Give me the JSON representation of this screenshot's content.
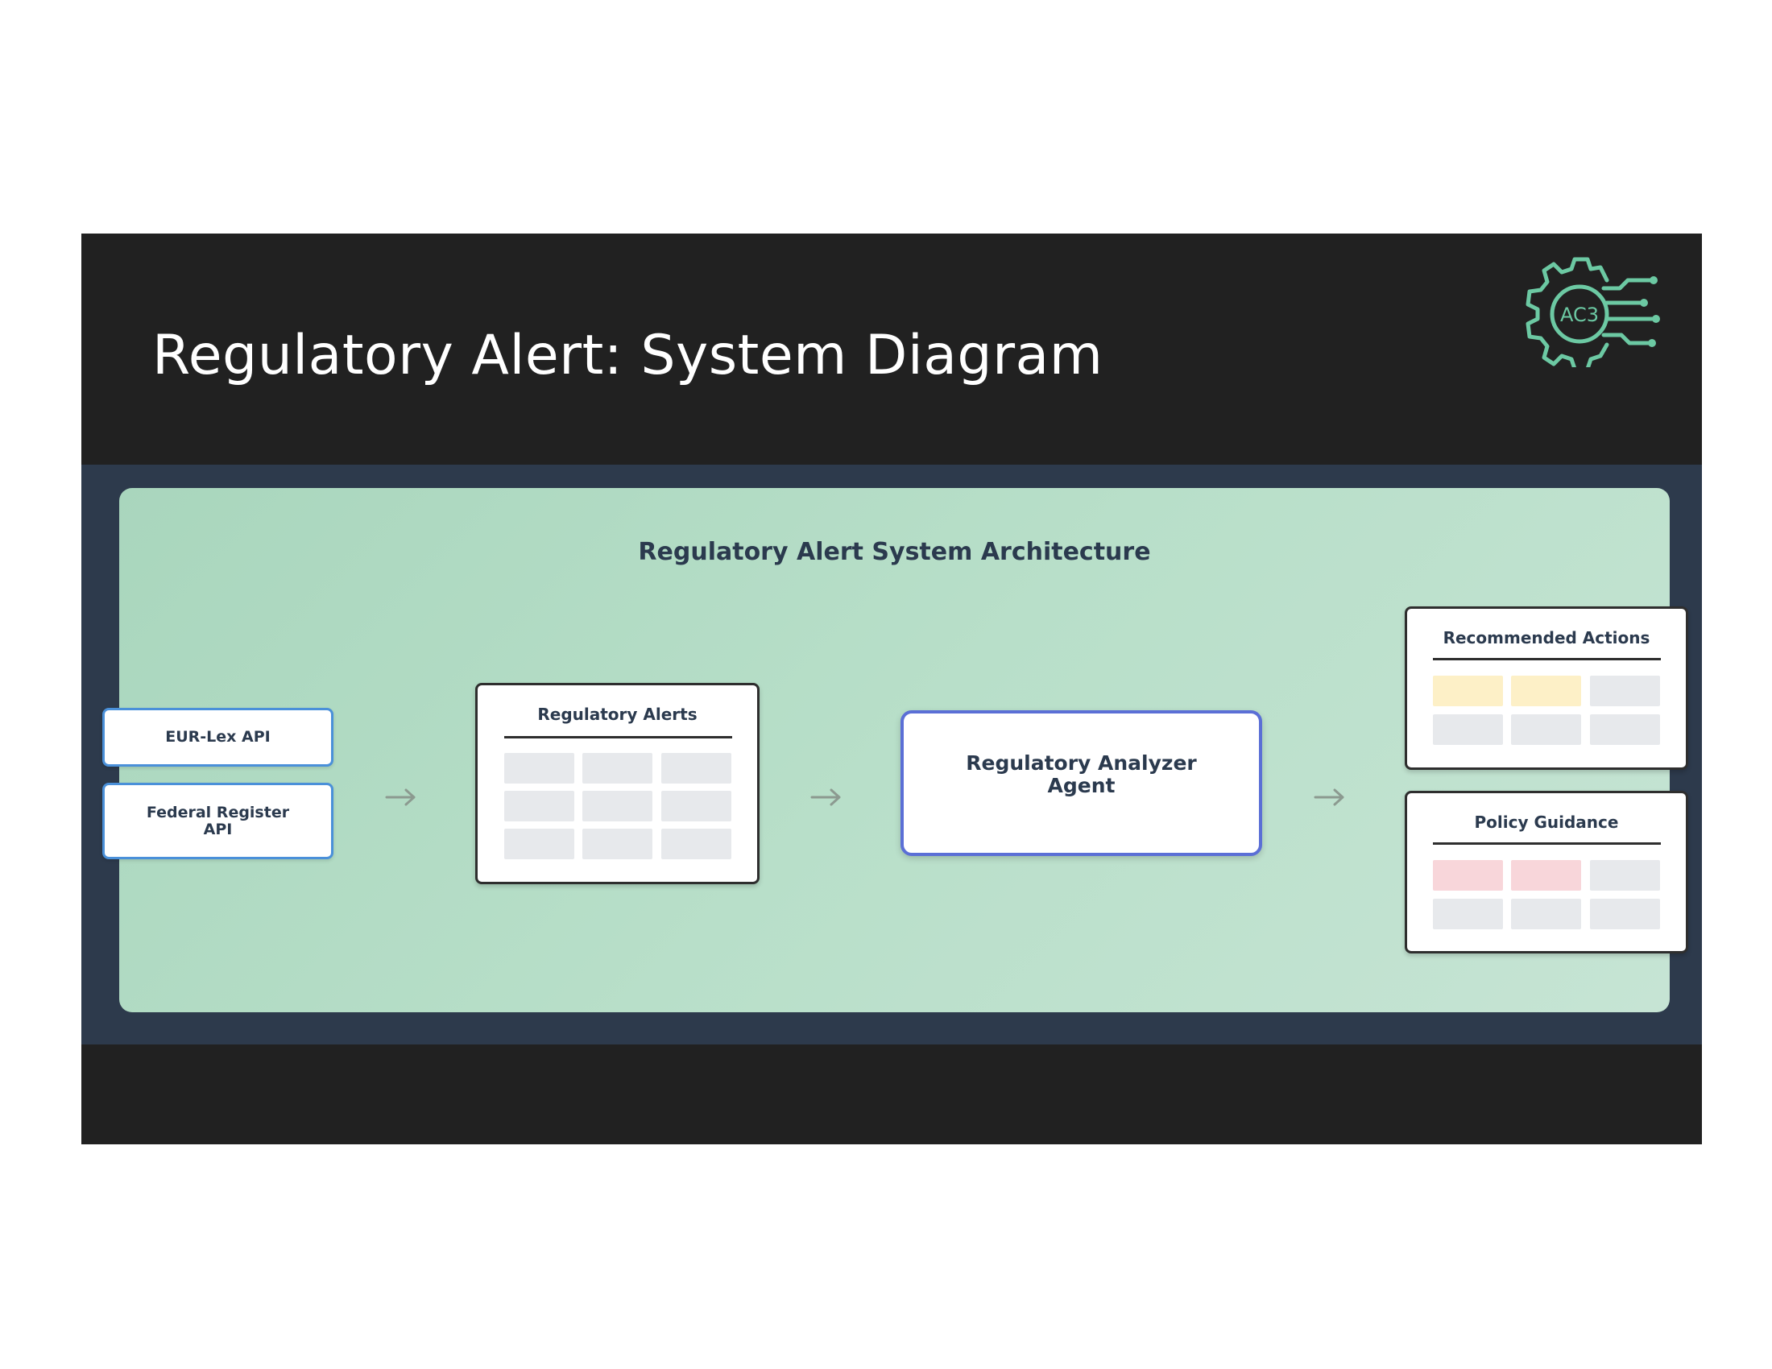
{
  "slide": {
    "title": "Regulatory Alert: System Diagram",
    "logo_text": "AC3",
    "logo_color": "#6cc9a3"
  },
  "diagram": {
    "title": "Regulatory Alert System Architecture",
    "sources": [
      {
        "label": "EUR-Lex API"
      },
      {
        "label": "Federal Register\nAPI"
      }
    ],
    "alerts_card": {
      "title": "Regulatory Alerts"
    },
    "agent": {
      "label": "Regulatory Analyzer\nAgent"
    },
    "actions_card": {
      "title": "Recommended Actions"
    },
    "guidance_card": {
      "title": "Policy Guidance"
    }
  },
  "colors": {
    "slide_bg": "#212121",
    "band_bg": "#2d3a4c",
    "panel_green": "#b8dfc9",
    "api_border": "#4a90d9",
    "agent_border": "#5b6fd6",
    "cell_gray": "#e7e9ec",
    "cell_yellow": "#fdf0c7",
    "cell_pink": "#f8d6da",
    "arrow_gray": "#8c9a90"
  }
}
